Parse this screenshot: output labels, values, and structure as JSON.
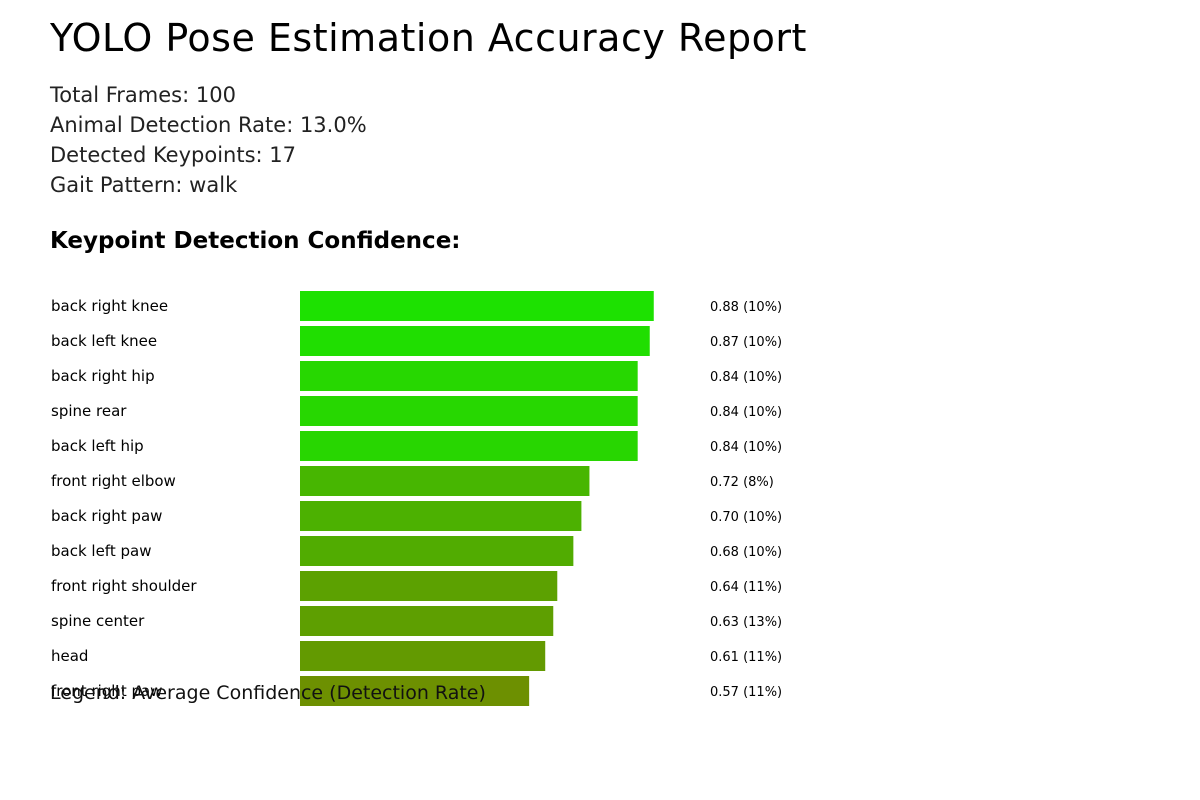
{
  "report": {
    "title": "YOLO Pose Estimation Accuracy Report",
    "total_frames": "Total Frames: 100",
    "detection_rate": "Animal Detection Rate: 13.0%",
    "detected_keypoints": "Detected Keypoints: 17",
    "gait_pattern": "Gait Pattern: walk",
    "section_title": "Keypoint Detection Confidence:",
    "legend": "Legend: Average Confidence (Detection Rate)"
  },
  "chart_data": {
    "type": "bar",
    "orientation": "horizontal",
    "categories": [
      "back right knee",
      "back left knee",
      "back right hip",
      "spine rear",
      "back left hip",
      "front right elbow",
      "back right paw",
      "back left paw",
      "front right shoulder",
      "spine center",
      "head",
      "front right paw"
    ],
    "values": [
      0.88,
      0.87,
      0.84,
      0.84,
      0.84,
      0.72,
      0.7,
      0.68,
      0.64,
      0.63,
      0.61,
      0.57
    ],
    "value_labels": [
      "0.88 (10%)",
      "0.87 (10%)",
      "0.84 (10%)",
      "0.84 (10%)",
      "0.84 (10%)",
      "0.72 (8%)",
      "0.70 (10%)",
      "0.68 (10%)",
      "0.64 (11%)",
      "0.63 (13%)",
      "0.61 (11%)",
      "0.57 (11%)"
    ],
    "bar_colors": [
      "#1de101",
      "#20de01",
      "#27d701",
      "#27d701",
      "#28d601",
      "#47b601",
      "#4cb101",
      "#51ac01",
      "#5ca101",
      "#5e9f01",
      "#639a01",
      "#6d9001"
    ],
    "xlim": [
      0,
      1
    ]
  }
}
